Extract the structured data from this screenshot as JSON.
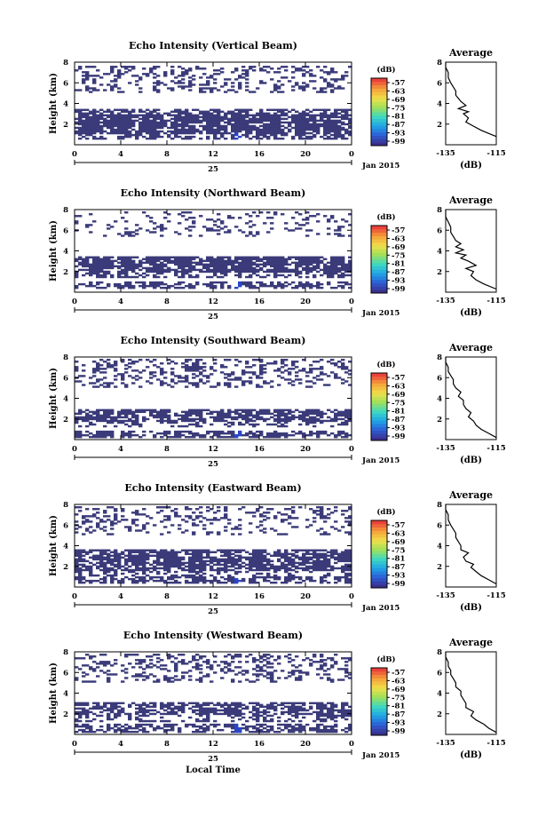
{
  "chart_data": [
    {
      "type": "heatmap",
      "title": "Echo Intensity (Vertical Beam)",
      "ylabel": "Height (km)",
      "x_ticks": [
        "0",
        "4",
        "8",
        "12",
        "16",
        "20",
        "0"
      ],
      "day_label": "25",
      "month_label": "Jan 2015",
      "xlim": [
        0,
        24
      ],
      "ylim": [
        0,
        8
      ],
      "y_ticks": [
        "2",
        "4",
        "6",
        "8"
      ],
      "colorbar": {
        "unit": "(dB)",
        "ticks": [
          "-57",
          "-63",
          "-69",
          "-75",
          "-81",
          "-87",
          "-93",
          "-99"
        ]
      },
      "filled_cell_value_dB": -99,
      "layers": [
        {
          "from_km": 0.6,
          "to_km": 1.0,
          "fill": 0.55
        },
        {
          "from_km": 1.0,
          "to_km": 3.0,
          "fill": 0.85
        },
        {
          "from_km": 3.0,
          "to_km": 3.4,
          "fill": 0.55
        },
        {
          "from_km": 5.0,
          "to_km": 5.5,
          "fill": 0.3
        },
        {
          "from_km": 5.5,
          "to_km": 6.6,
          "fill": 0.25
        },
        {
          "from_km": 6.6,
          "to_km": 7.6,
          "fill": 0.3
        }
      ],
      "average_profile": {
        "title": "Average",
        "xlabel": "(dB)",
        "x_ticks": [
          "-135",
          "-115"
        ],
        "xlim": [
          -135,
          -115
        ],
        "y_ticks": [
          "2",
          "4",
          "6",
          "8"
        ],
        "ylim": [
          0,
          8
        ],
        "height_km": [
          0.8,
          1.0,
          1.4,
          1.8,
          2.2,
          2.6,
          3.0,
          3.2,
          3.5,
          3.8,
          4.2,
          4.5,
          4.8,
          5.2,
          5.6,
          6.0,
          6.5,
          7.0,
          7.5,
          8.0
        ],
        "value_dB": [
          -115,
          -117,
          -121,
          -124,
          -127,
          -126,
          -128,
          -126,
          -130,
          -127,
          -129,
          -130,
          -131,
          -131,
          -132,
          -133,
          -134,
          -134,
          -135,
          -135
        ]
      }
    },
    {
      "type": "heatmap",
      "title": "Echo Intensity (Northward Beam)",
      "ylabel": "Height (km)",
      "x_ticks": [
        "0",
        "4",
        "8",
        "12",
        "16",
        "20",
        "0"
      ],
      "day_label": "25",
      "month_label": "Jan 2015",
      "xlim": [
        0,
        24
      ],
      "ylim": [
        0,
        8
      ],
      "y_ticks": [
        "2",
        "4",
        "6",
        "8"
      ],
      "colorbar": {
        "unit": "(dB)",
        "ticks": [
          "-57",
          "-63",
          "-69",
          "-75",
          "-81",
          "-87",
          "-93",
          "-99"
        ]
      },
      "filled_cell_value_dB": -99,
      "layers": [
        {
          "from_km": 0.3,
          "to_km": 1.0,
          "fill": 0.55
        },
        {
          "from_km": 1.4,
          "to_km": 2.0,
          "fill": 0.45
        },
        {
          "from_km": 2.0,
          "to_km": 3.4,
          "fill": 0.8
        },
        {
          "from_km": 5.4,
          "to_km": 6.2,
          "fill": 0.2
        },
        {
          "from_km": 6.2,
          "to_km": 7.8,
          "fill": 0.15
        }
      ],
      "average_profile": {
        "title": "Average",
        "xlabel": "(dB)",
        "x_ticks": [
          "-135",
          "-115"
        ],
        "xlim": [
          -135,
          -115
        ],
        "y_ticks": [
          "2",
          "4",
          "6",
          "8"
        ],
        "ylim": [
          0,
          8
        ],
        "height_km": [
          0.3,
          0.8,
          1.2,
          1.6,
          2.0,
          2.3,
          2.6,
          3.0,
          3.3,
          3.6,
          3.8,
          4.1,
          4.4,
          4.7,
          5.0,
          5.4,
          5.8,
          6.3,
          6.8,
          7.3,
          8.0
        ],
        "value_dB": [
          -115,
          -120,
          -123,
          -125,
          -124,
          -127,
          -123,
          -126,
          -129,
          -127,
          -131,
          -128,
          -131,
          -129,
          -131,
          -132,
          -133,
          -133,
          -134,
          -135,
          -135
        ]
      }
    },
    {
      "type": "heatmap",
      "title": "Echo Intensity (Southward Beam)",
      "ylabel": "Height (km)",
      "x_ticks": [
        "0",
        "4",
        "8",
        "12",
        "16",
        "20",
        "0"
      ],
      "day_label": "25",
      "month_label": "Jan 2015",
      "xlim": [
        0,
        24
      ],
      "ylim": [
        0,
        8
      ],
      "y_ticks": [
        "2",
        "4",
        "6",
        "8"
      ],
      "colorbar": {
        "unit": "(dB)",
        "ticks": [
          "-57",
          "-63",
          "-69",
          "-75",
          "-81",
          "-87",
          "-93",
          "-99"
        ]
      },
      "filled_cell_value_dB": -99,
      "layers": [
        {
          "from_km": 0.2,
          "to_km": 0.9,
          "fill": 0.6
        },
        {
          "from_km": 1.2,
          "to_km": 1.8,
          "fill": 0.35
        },
        {
          "from_km": 1.8,
          "to_km": 3.0,
          "fill": 0.7
        },
        {
          "from_km": 5.0,
          "to_km": 6.4,
          "fill": 0.25
        },
        {
          "from_km": 6.4,
          "to_km": 7.8,
          "fill": 0.3
        }
      ],
      "average_profile": {
        "title": "Average",
        "xlabel": "(dB)",
        "x_ticks": [
          "-135",
          "-115"
        ],
        "xlim": [
          -135,
          -115
        ],
        "y_ticks": [
          "2",
          "4",
          "6",
          "8"
        ],
        "ylim": [
          0,
          8
        ],
        "height_km": [
          0.2,
          0.6,
          1.0,
          1.4,
          1.8,
          2.2,
          2.6,
          3.0,
          3.4,
          3.8,
          4.2,
          4.6,
          5.0,
          5.4,
          5.8,
          6.2,
          6.6,
          7.0,
          7.5,
          8.0
        ],
        "value_dB": [
          -115,
          -118,
          -121,
          -123,
          -124,
          -126,
          -125,
          -127,
          -128,
          -128,
          -130,
          -129,
          -131,
          -132,
          -132,
          -133,
          -134,
          -134,
          -135,
          -135
        ]
      }
    },
    {
      "type": "heatmap",
      "title": "Echo Intensity (Eastward Beam)",
      "ylabel": "Height (km)",
      "x_ticks": [
        "0",
        "4",
        "8",
        "12",
        "16",
        "20",
        "0"
      ],
      "day_label": "25",
      "month_label": "Jan 2015",
      "xlim": [
        0,
        24
      ],
      "ylim": [
        0,
        8
      ],
      "y_ticks": [
        "2",
        "4",
        "6",
        "8"
      ],
      "colorbar": {
        "unit": "(dB)",
        "ticks": [
          "-57",
          "-63",
          "-69",
          "-75",
          "-81",
          "-87",
          "-93",
          "-99"
        ]
      },
      "filled_cell_value_dB": -99,
      "layers": [
        {
          "from_km": 0.3,
          "to_km": 1.0,
          "fill": 0.6
        },
        {
          "from_km": 1.0,
          "to_km": 1.6,
          "fill": 0.35
        },
        {
          "from_km": 1.6,
          "to_km": 3.6,
          "fill": 0.75
        },
        {
          "from_km": 5.0,
          "to_km": 6.4,
          "fill": 0.2
        },
        {
          "from_km": 6.4,
          "to_km": 7.8,
          "fill": 0.25
        }
      ],
      "average_profile": {
        "title": "Average",
        "xlabel": "(dB)",
        "x_ticks": [
          "-135",
          "-115"
        ],
        "xlim": [
          -135,
          -115
        ],
        "y_ticks": [
          "2",
          "4",
          "6",
          "8"
        ],
        "ylim": [
          0,
          8
        ],
        "height_km": [
          0.3,
          0.7,
          1.1,
          1.5,
          1.9,
          2.2,
          2.5,
          2.9,
          3.3,
          3.6,
          4.0,
          4.4,
          4.8,
          5.2,
          5.6,
          6.0,
          6.5,
          7.0,
          7.5,
          8.0
        ],
        "value_dB": [
          -115,
          -118,
          -121,
          -123,
          -125,
          -124,
          -127,
          -128,
          -126,
          -129,
          -129,
          -130,
          -131,
          -131,
          -132,
          -133,
          -134,
          -134,
          -135,
          -135
        ]
      }
    },
    {
      "type": "heatmap",
      "title": "Echo Intensity (Westward Beam)",
      "ylabel": "Height (km)",
      "x_ticks": [
        "0",
        "4",
        "8",
        "12",
        "16",
        "20",
        "0"
      ],
      "day_label": "25",
      "month_label": "Jan 2015",
      "xlabel": "Local Time",
      "xlim": [
        0,
        24
      ],
      "ylim": [
        0,
        8
      ],
      "y_ticks": [
        "2",
        "4",
        "6",
        "8"
      ],
      "colorbar": {
        "unit": "(dB)",
        "ticks": [
          "-57",
          "-63",
          "-69",
          "-75",
          "-81",
          "-87",
          "-93",
          "-99"
        ]
      },
      "filled_cell_value_dB": -99,
      "layers": [
        {
          "from_km": 0.2,
          "to_km": 1.0,
          "fill": 0.55
        },
        {
          "from_km": 1.2,
          "to_km": 2.0,
          "fill": 0.35
        },
        {
          "from_km": 2.0,
          "to_km": 3.2,
          "fill": 0.65
        },
        {
          "from_km": 5.0,
          "to_km": 6.2,
          "fill": 0.25
        },
        {
          "from_km": 6.2,
          "to_km": 7.8,
          "fill": 0.3
        }
      ],
      "average_profile": {
        "title": "Average",
        "xlabel": "(dB)",
        "x_ticks": [
          "-135",
          "-115"
        ],
        "xlim": [
          -135,
          -115
        ],
        "y_ticks": [
          "2",
          "4",
          "6",
          "8"
        ],
        "ylim": [
          0,
          8
        ],
        "height_km": [
          0.2,
          0.6,
          1.0,
          1.4,
          1.8,
          2.2,
          2.6,
          3.0,
          3.4,
          3.8,
          4.2,
          4.6,
          5.0,
          5.4,
          5.8,
          6.2,
          6.6,
          7.0,
          7.5,
          8.0
        ],
        "value_dB": [
          -115,
          -118,
          -120,
          -123,
          -125,
          -124,
          -127,
          -127,
          -128,
          -129,
          -129,
          -131,
          -131,
          -132,
          -133,
          -133,
          -134,
          -134,
          -135,
          -135
        ]
      }
    }
  ],
  "colors": {
    "echo_fill": "#3b3b7a",
    "bright_cell": "#2a46c8",
    "colorbar_stops": [
      "#3a2f8c",
      "#2c5fd6",
      "#20a6e6",
      "#3fd9c0",
      "#9fe05a",
      "#f0e04a",
      "#f6a23a",
      "#e9423a"
    ]
  }
}
